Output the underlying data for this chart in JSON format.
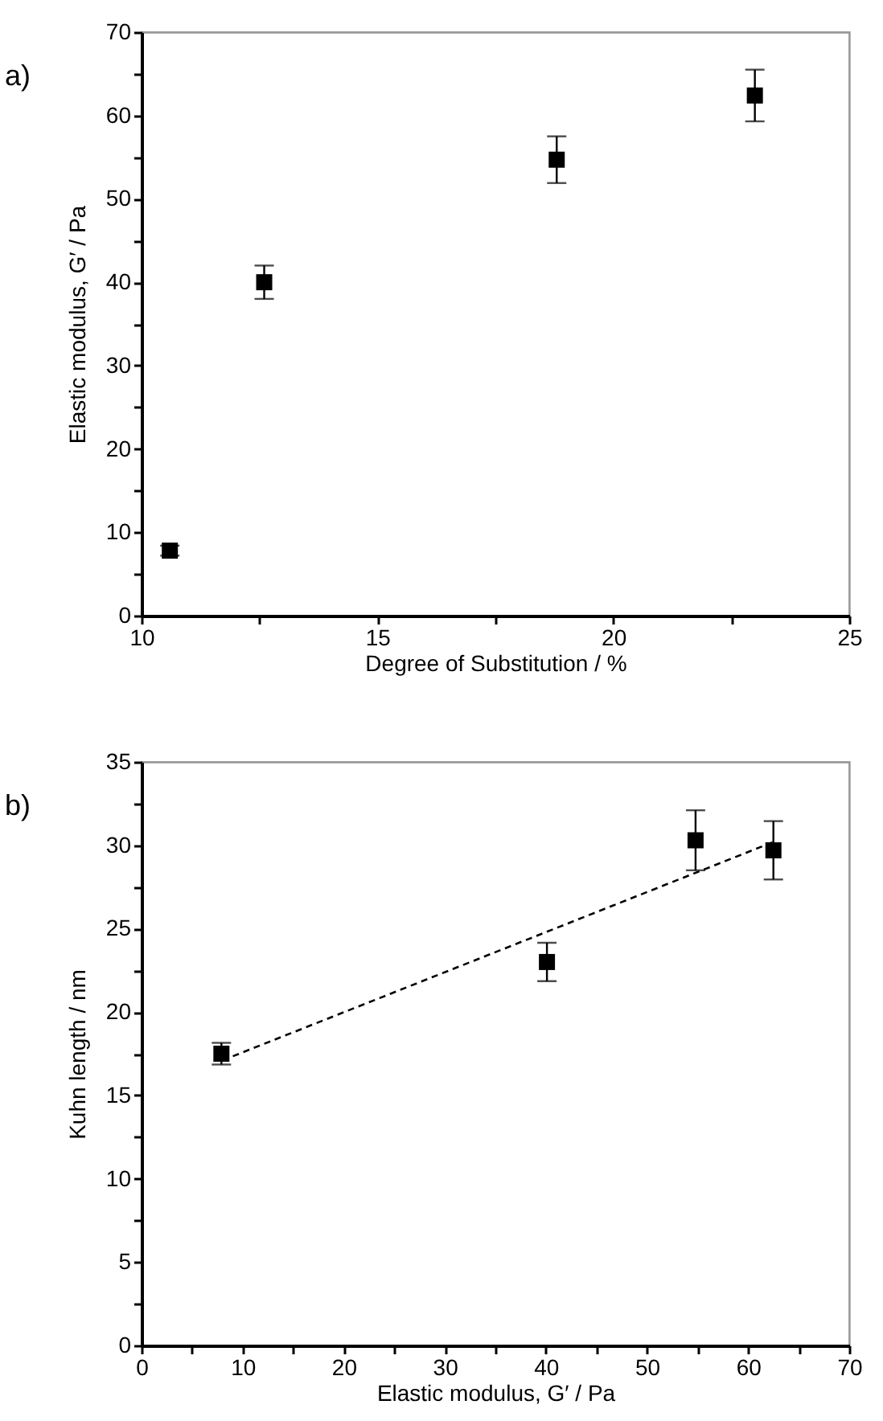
{
  "chart_data": [
    {
      "type": "scatter",
      "title": "a)",
      "xlabel": "Degree of Substitution / %",
      "ylabel": "Elastic modulus, G′ / Pa",
      "marker": "square",
      "grid": false,
      "legend": false,
      "xlim": [
        10,
        25
      ],
      "xticks": [
        10,
        {
          "value": 12.5,
          "label": null
        },
        15,
        {
          "value": 17.5,
          "label": null
        },
        20,
        {
          "value": 22.5,
          "label": null
        },
        25
      ],
      "ylim": [
        0,
        70
      ],
      "yticks": [
        0,
        {
          "value": 5,
          "label": null
        },
        10,
        {
          "value": 15,
          "label": null
        },
        20,
        {
          "value": 25,
          "label": null
        },
        30,
        {
          "value": 35,
          "label": null
        },
        40,
        {
          "value": 45,
          "label": null
        },
        50,
        {
          "value": 55,
          "label": null
        },
        60,
        {
          "value": 65,
          "label": null
        },
        70
      ],
      "series": [
        {
          "color": "#000000",
          "x": [
            10.6,
            12.6,
            18.8,
            23.0
          ],
          "values": [
            7.8,
            40.0,
            54.7,
            62.4
          ],
          "errors": [
            0.6,
            2.0,
            2.8,
            3.1
          ]
        }
      ]
    },
    {
      "type": "scatter",
      "title": "b)",
      "xlabel": "Elastic modulus, G′ / Pa",
      "ylabel": "Kuhn length / nm",
      "marker": "square",
      "grid": false,
      "legend": false,
      "xlim": [
        0,
        70
      ],
      "xticks": [
        0,
        {
          "value": 5,
          "label": null
        },
        10,
        {
          "value": 15,
          "label": null
        },
        20,
        {
          "value": 25,
          "label": null
        },
        30,
        {
          "value": 35,
          "label": null
        },
        40,
        {
          "value": 45,
          "label": null
        },
        50,
        {
          "value": 55,
          "label": null
        },
        60,
        {
          "value": 65,
          "label": null
        },
        70
      ],
      "ylim": [
        0,
        35
      ],
      "yticks": [
        0,
        {
          "value": 2.5,
          "label": null
        },
        5,
        {
          "value": 7.5,
          "label": null
        },
        10,
        {
          "value": 12.5,
          "label": null
        },
        15,
        {
          "value": 17.5,
          "label": null
        },
        20,
        {
          "value": 22.5,
          "label": null
        },
        25,
        {
          "value": 27.5,
          "label": null
        },
        30,
        {
          "value": 32.5,
          "label": null
        },
        35
      ],
      "series": [
        {
          "color": "#000000",
          "x": [
            7.9,
            40.1,
            54.8,
            62.5
          ],
          "values": [
            17.5,
            23.0,
            30.3,
            29.7
          ],
          "errors": [
            0.65,
            1.15,
            1.8,
            1.75
          ]
        },
        {
          "type": "line",
          "line_style": "dashed",
          "marker": "none",
          "color": "#000000",
          "x": [
            8,
            62.5
          ],
          "values": [
            17.1,
            30.2
          ]
        }
      ]
    }
  ]
}
